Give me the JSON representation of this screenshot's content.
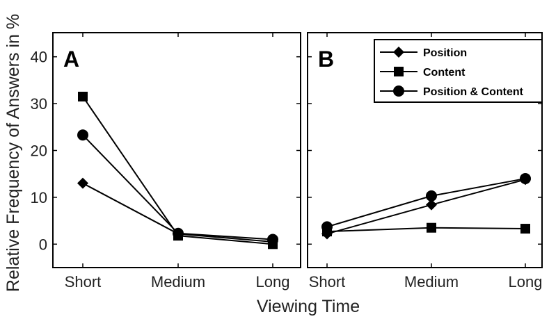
{
  "chart_data": {
    "type": "line",
    "xlabel": "Viewing Time",
    "ylabel": "Relative Frequency of Answers in %",
    "categories": [
      "Short",
      "Medium",
      "Long"
    ],
    "ylim": [
      -5,
      45
    ],
    "yticks": [
      0,
      10,
      20,
      30,
      40
    ],
    "legend_position": "top-right of panel B",
    "panels": [
      {
        "label": "A",
        "series": [
          {
            "name": "Position",
            "marker": "diamond",
            "values": [
              13,
              2.2,
              0.5
            ]
          },
          {
            "name": "Content",
            "marker": "square",
            "values": [
              31.5,
              1.8,
              0
            ]
          },
          {
            "name": "Position & Content",
            "marker": "circle",
            "values": [
              23.3,
              2.3,
              1
            ]
          }
        ]
      },
      {
        "label": "B",
        "series": [
          {
            "name": "Position",
            "marker": "diamond",
            "values": [
              2.2,
              8.4,
              13.8
            ]
          },
          {
            "name": "Content",
            "marker": "square",
            "values": [
              2.7,
              3.5,
              3.3
            ]
          },
          {
            "name": "Position & Content",
            "marker": "circle",
            "values": [
              3.7,
              10.3,
              14
            ]
          }
        ]
      }
    ]
  }
}
